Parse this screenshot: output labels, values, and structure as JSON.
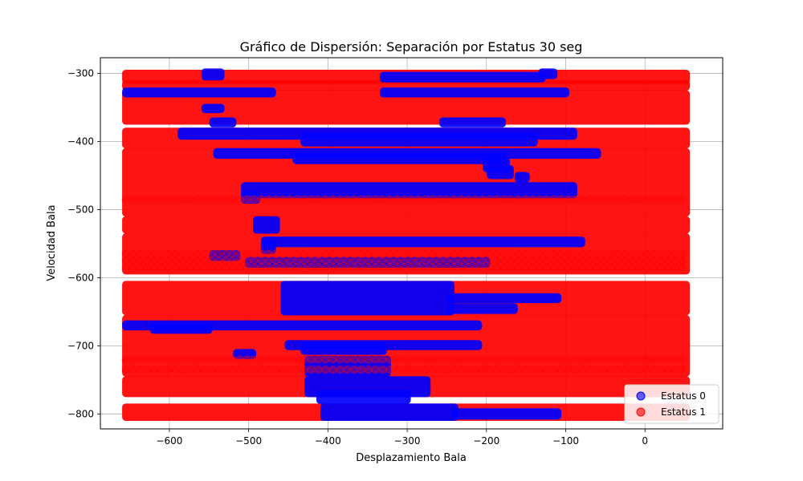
{
  "chart_data": {
    "type": "scatter",
    "title": "Gráfico de Dispersión: Separación por Estatus 30 seg",
    "xlabel": "Desplazamiento Bala",
    "ylabel": "Velocidad Bala",
    "xlim": [
      -687,
      98
    ],
    "ylim": [
      -822,
      -277
    ],
    "x_ticks": [
      -600,
      -500,
      -400,
      -300,
      -200,
      -100,
      0
    ],
    "y_ticks": [
      -800,
      -700,
      -600,
      -500,
      -400,
      -300
    ],
    "x_tick_labels": [
      "−600",
      "−500",
      "−400",
      "−300",
      "−200",
      "−100",
      "0"
    ],
    "y_tick_labels": [
      "−800",
      "−700",
      "−600",
      "−500",
      "−400",
      "−300"
    ],
    "grid": true,
    "legend_position": "bottom-right",
    "series": [
      {
        "name": "Estatus 0",
        "color": "#0000ff"
      },
      {
        "name": "Estatus 1",
        "color": "#ff0000"
      }
    ],
    "x_range_points": [
      -655,
      52
    ],
    "red_bands": [
      {
        "y0": -300,
        "y1": -310,
        "x0": -655,
        "x1": 52
      },
      {
        "y0": -315,
        "y1": -320,
        "x0": -655,
        "x1": 52
      },
      {
        "y0": -330,
        "y1": -370,
        "x0": -655,
        "x1": 52
      },
      {
        "y0": -385,
        "y1": -405,
        "x0": -655,
        "x1": 52
      },
      {
        "y0": -415,
        "y1": -505,
        "x0": -655,
        "x1": 52
      },
      {
        "y0": -515,
        "y1": -530,
        "x0": -655,
        "x1": 52
      },
      {
        "y0": -540,
        "y1": -590,
        "x0": -655,
        "x1": 52
      },
      {
        "y0": -610,
        "y1": -650,
        "x0": -655,
        "x1": 52
      },
      {
        "y0": -660,
        "y1": -740,
        "x0": -655,
        "x1": 52
      },
      {
        "y0": -750,
        "y1": -770,
        "x0": -655,
        "x1": 52
      },
      {
        "y0": -790,
        "y1": -805,
        "x0": -655,
        "x1": 52
      }
    ],
    "blue_regions": [
      {
        "y0": -298,
        "y1": -305,
        "x0": -555,
        "x1": -535
      },
      {
        "y0": -303,
        "y1": -308,
        "x0": -330,
        "x1": -130
      },
      {
        "y0": -298,
        "y1": -303,
        "x0": -130,
        "x1": -115
      },
      {
        "y0": -326,
        "y1": -330,
        "x0": -655,
        "x1": -470
      },
      {
        "y0": -326,
        "y1": -330,
        "x0": -330,
        "x1": -100
      },
      {
        "y0": -350,
        "y1": -353,
        "x0": -555,
        "x1": -535
      },
      {
        "y0": -370,
        "y1": -374,
        "x0": -545,
        "x1": -520
      },
      {
        "y0": -370,
        "y1": -374,
        "x0": -255,
        "x1": -180
      },
      {
        "y0": -385,
        "y1": -392,
        "x0": -585,
        "x1": -90
      },
      {
        "y0": -392,
        "y1": -402,
        "x0": -430,
        "x1": -140
      },
      {
        "y0": -415,
        "y1": -420,
        "x0": -540,
        "x1": -60
      },
      {
        "y0": -420,
        "y1": -428,
        "x0": -440,
        "x1": -180
      },
      {
        "y0": -428,
        "y1": -440,
        "x0": -200,
        "x1": -175
      },
      {
        "y0": -440,
        "y1": -450,
        "x0": -195,
        "x1": -170
      },
      {
        "y0": -450,
        "y1": -455,
        "x0": -160,
        "x1": -150
      },
      {
        "y0": -465,
        "y1": -478,
        "x0": -505,
        "x1": -90
      },
      {
        "y0": -478,
        "y1": -486,
        "x0": -505,
        "x1": -490
      },
      {
        "y0": -515,
        "y1": -530,
        "x0": -490,
        "x1": -465
      },
      {
        "y0": -545,
        "y1": -550,
        "x0": -480,
        "x1": -80
      },
      {
        "y0": -550,
        "y1": -560,
        "x0": -480,
        "x1": -470
      },
      {
        "y0": -565,
        "y1": -570,
        "x0": -545,
        "x1": -515
      },
      {
        "y0": -575,
        "y1": -580,
        "x0": -500,
        "x1": -200
      },
      {
        "y0": -610,
        "y1": -650,
        "x0": -455,
        "x1": -245
      },
      {
        "y0": -628,
        "y1": -632,
        "x0": -245,
        "x1": -110
      },
      {
        "y0": -643,
        "y1": -648,
        "x0": -245,
        "x1": -165
      },
      {
        "y0": -668,
        "y1": -672,
        "x0": -655,
        "x1": -210
      },
      {
        "y0": -672,
        "y1": -677,
        "x0": -620,
        "x1": -550
      },
      {
        "y0": -697,
        "y1": -701,
        "x0": -450,
        "x1": -210
      },
      {
        "y0": -700,
        "y1": -708,
        "x0": -430,
        "x1": -330
      },
      {
        "y0": -710,
        "y1": -714,
        "x0": -515,
        "x1": -495
      },
      {
        "y0": -720,
        "y1": -740,
        "x0": -425,
        "x1": -325
      },
      {
        "y0": -750,
        "y1": -770,
        "x0": -425,
        "x1": -275
      },
      {
        "y0": -770,
        "y1": -780,
        "x0": -410,
        "x1": -300
      },
      {
        "y0": -790,
        "y1": -805,
        "x0": -405,
        "x1": -240
      },
      {
        "y0": -797,
        "y1": -803,
        "x0": -240,
        "x1": -110
      }
    ]
  }
}
